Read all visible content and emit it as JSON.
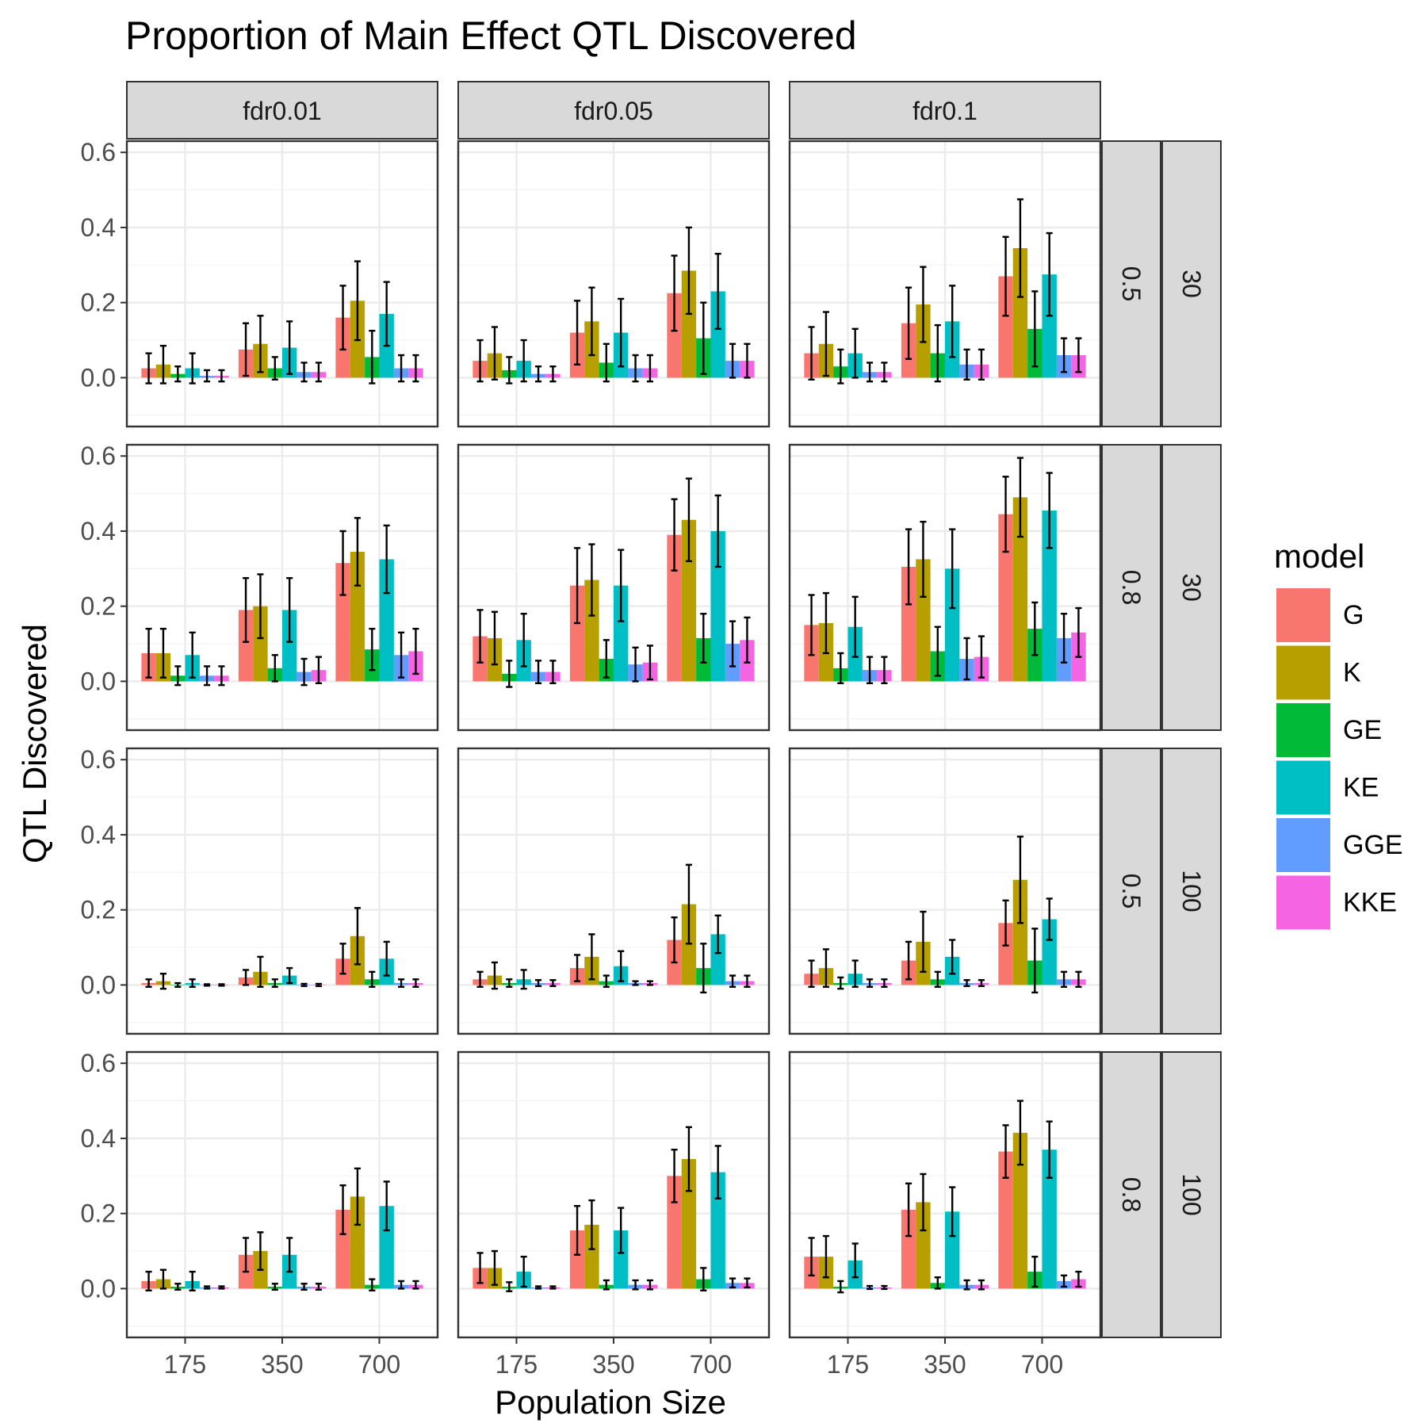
{
  "chart_data": {
    "type": "bar",
    "title": "Proportion of Main Effect QTL Discovered",
    "xlabel": "Population Size",
    "ylabel": "QTL Discovered",
    "categories": [
      "175",
      "350",
      "700"
    ],
    "ylim": [
      -0.13,
      0.63
    ],
    "yticks": [
      "0.0",
      "0.2",
      "0.4",
      "0.6"
    ],
    "grid": true,
    "legend": {
      "title": "model",
      "position": "right"
    },
    "models": [
      "G",
      "K",
      "GE",
      "KE",
      "GGE",
      "KKE"
    ],
    "colors": {
      "G": "#F8766D",
      "K": "#B79F00",
      "GE": "#00BA38",
      "KE": "#00BFC4",
      "GGE": "#619CFF",
      "KKE": "#F564E3"
    },
    "col_labels": [
      "fdr0.01",
      "fdr0.05",
      "fdr0.1"
    ],
    "row_labels": [
      [
        "0.5",
        "30"
      ],
      [
        "0.8",
        "30"
      ],
      [
        "0.5",
        "100"
      ],
      [
        "0.8",
        "100"
      ]
    ],
    "panels": [
      {
        "row": 0,
        "col": 0,
        "series": [
          {
            "name": "G",
            "values": [
              0.025,
              0.075,
              0.16
            ],
            "err": [
              0.04,
              0.07,
              0.085
            ]
          },
          {
            "name": "K",
            "values": [
              0.035,
              0.09,
              0.205
            ],
            "err": [
              0.05,
              0.075,
              0.105
            ]
          },
          {
            "name": "GE",
            "values": [
              0.01,
              0.025,
              0.055
            ],
            "err": [
              0.02,
              0.03,
              0.07
            ]
          },
          {
            "name": "KE",
            "values": [
              0.025,
              0.08,
              0.17
            ],
            "err": [
              0.04,
              0.07,
              0.085
            ]
          },
          {
            "name": "GGE",
            "values": [
              0.005,
              0.015,
              0.025
            ],
            "err": [
              0.015,
              0.025,
              0.035
            ]
          },
          {
            "name": "KKE",
            "values": [
              0.005,
              0.015,
              0.025
            ],
            "err": [
              0.015,
              0.025,
              0.035
            ]
          }
        ]
      },
      {
        "row": 0,
        "col": 1,
        "series": [
          {
            "name": "G",
            "values": [
              0.045,
              0.12,
              0.225
            ],
            "err": [
              0.055,
              0.085,
              0.1
            ]
          },
          {
            "name": "K",
            "values": [
              0.065,
              0.15,
              0.285
            ],
            "err": [
              0.07,
              0.09,
              0.115
            ]
          },
          {
            "name": "GE",
            "values": [
              0.02,
              0.04,
              0.105
            ],
            "err": [
              0.035,
              0.05,
              0.095
            ]
          },
          {
            "name": "KE",
            "values": [
              0.045,
              0.12,
              0.23
            ],
            "err": [
              0.055,
              0.09,
              0.1
            ]
          },
          {
            "name": "GGE",
            "values": [
              0.01,
              0.025,
              0.045
            ],
            "err": [
              0.02,
              0.035,
              0.045
            ]
          },
          {
            "name": "KKE",
            "values": [
              0.01,
              0.025,
              0.045
            ],
            "err": [
              0.02,
              0.035,
              0.045
            ]
          }
        ]
      },
      {
        "row": 0,
        "col": 2,
        "series": [
          {
            "name": "G",
            "values": [
              0.065,
              0.145,
              0.27
            ],
            "err": [
              0.07,
              0.095,
              0.105
            ]
          },
          {
            "name": "K",
            "values": [
              0.09,
              0.195,
              0.345
            ],
            "err": [
              0.085,
              0.1,
              0.13
            ]
          },
          {
            "name": "GE",
            "values": [
              0.03,
              0.065,
              0.13
            ],
            "err": [
              0.045,
              0.075,
              0.1
            ]
          },
          {
            "name": "KE",
            "values": [
              0.065,
              0.15,
              0.275
            ],
            "err": [
              0.065,
              0.095,
              0.11
            ]
          },
          {
            "name": "GGE",
            "values": [
              0.015,
              0.035,
              0.06
            ],
            "err": [
              0.025,
              0.04,
              0.045
            ]
          },
          {
            "name": "KKE",
            "values": [
              0.015,
              0.035,
              0.06
            ],
            "err": [
              0.025,
              0.04,
              0.045
            ]
          }
        ]
      },
      {
        "row": 1,
        "col": 0,
        "series": [
          {
            "name": "G",
            "values": [
              0.075,
              0.19,
              0.315
            ],
            "err": [
              0.065,
              0.085,
              0.085
            ]
          },
          {
            "name": "K",
            "values": [
              0.075,
              0.2,
              0.345
            ],
            "err": [
              0.065,
              0.085,
              0.09
            ]
          },
          {
            "name": "GE",
            "values": [
              0.015,
              0.035,
              0.085
            ],
            "err": [
              0.025,
              0.035,
              0.055
            ]
          },
          {
            "name": "KE",
            "values": [
              0.07,
              0.19,
              0.325
            ],
            "err": [
              0.06,
              0.085,
              0.09
            ]
          },
          {
            "name": "GGE",
            "values": [
              0.015,
              0.025,
              0.07
            ],
            "err": [
              0.025,
              0.035,
              0.06
            ]
          },
          {
            "name": "KKE",
            "values": [
              0.015,
              0.03,
              0.08
            ],
            "err": [
              0.025,
              0.035,
              0.06
            ]
          }
        ]
      },
      {
        "row": 1,
        "col": 1,
        "series": [
          {
            "name": "G",
            "values": [
              0.12,
              0.255,
              0.39
            ],
            "err": [
              0.07,
              0.1,
              0.095
            ]
          },
          {
            "name": "K",
            "values": [
              0.115,
              0.27,
              0.43
            ],
            "err": [
              0.07,
              0.095,
              0.11
            ]
          },
          {
            "name": "GE",
            "values": [
              0.02,
              0.06,
              0.115
            ],
            "err": [
              0.035,
              0.05,
              0.065
            ]
          },
          {
            "name": "KE",
            "values": [
              0.11,
              0.255,
              0.4
            ],
            "err": [
              0.07,
              0.095,
              0.095
            ]
          },
          {
            "name": "GGE",
            "values": [
              0.025,
              0.045,
              0.1
            ],
            "err": [
              0.03,
              0.045,
              0.06
            ]
          },
          {
            "name": "KKE",
            "values": [
              0.025,
              0.05,
              0.11
            ],
            "err": [
              0.03,
              0.045,
              0.06
            ]
          }
        ]
      },
      {
        "row": 1,
        "col": 2,
        "series": [
          {
            "name": "G",
            "values": [
              0.15,
              0.305,
              0.445
            ],
            "err": [
              0.08,
              0.1,
              0.1
            ]
          },
          {
            "name": "K",
            "values": [
              0.155,
              0.325,
              0.49
            ],
            "err": [
              0.08,
              0.1,
              0.105
            ]
          },
          {
            "name": "GE",
            "values": [
              0.035,
              0.08,
              0.14
            ],
            "err": [
              0.04,
              0.065,
              0.07
            ]
          },
          {
            "name": "KE",
            "values": [
              0.145,
              0.3,
              0.455
            ],
            "err": [
              0.08,
              0.105,
              0.1
            ]
          },
          {
            "name": "GGE",
            "values": [
              0.03,
              0.06,
              0.115
            ],
            "err": [
              0.035,
              0.055,
              0.065
            ]
          },
          {
            "name": "KKE",
            "values": [
              0.03,
              0.065,
              0.13
            ],
            "err": [
              0.035,
              0.055,
              0.065
            ]
          }
        ]
      },
      {
        "row": 2,
        "col": 0,
        "series": [
          {
            "name": "G",
            "values": [
              0.005,
              0.02,
              0.07
            ],
            "err": [
              0.01,
              0.02,
              0.04
            ]
          },
          {
            "name": "K",
            "values": [
              0.01,
              0.035,
              0.13
            ],
            "err": [
              0.02,
              0.04,
              0.075
            ]
          },
          {
            "name": "GE",
            "values": [
              0.0,
              0.005,
              0.015
            ],
            "err": [
              0.005,
              0.01,
              0.02
            ]
          },
          {
            "name": "KE",
            "values": [
              0.005,
              0.025,
              0.07
            ],
            "err": [
              0.01,
              0.02,
              0.045
            ]
          },
          {
            "name": "GGE",
            "values": [
              0.0,
              0.0,
              0.005
            ],
            "err": [
              0.002,
              0.003,
              0.01
            ]
          },
          {
            "name": "KKE",
            "values": [
              0.0,
              0.0,
              0.005
            ],
            "err": [
              0.002,
              0.003,
              0.01
            ]
          }
        ]
      },
      {
        "row": 2,
        "col": 1,
        "series": [
          {
            "name": "G",
            "values": [
              0.015,
              0.045,
              0.12
            ],
            "err": [
              0.02,
              0.035,
              0.06
            ]
          },
          {
            "name": "K",
            "values": [
              0.025,
              0.075,
              0.215
            ],
            "err": [
              0.035,
              0.06,
              0.105
            ]
          },
          {
            "name": "GE",
            "values": [
              0.005,
              0.01,
              0.045
            ],
            "err": [
              0.01,
              0.015,
              0.065
            ]
          },
          {
            "name": "KE",
            "values": [
              0.015,
              0.05,
              0.135
            ],
            "err": [
              0.025,
              0.04,
              0.05
            ]
          },
          {
            "name": "GGE",
            "values": [
              0.005,
              0.005,
              0.01
            ],
            "err": [
              0.008,
              0.005,
              0.015
            ]
          },
          {
            "name": "KKE",
            "values": [
              0.005,
              0.005,
              0.01
            ],
            "err": [
              0.008,
              0.005,
              0.015
            ]
          }
        ]
      },
      {
        "row": 2,
        "col": 2,
        "series": [
          {
            "name": "G",
            "values": [
              0.03,
              0.065,
              0.165
            ],
            "err": [
              0.035,
              0.05,
              0.06
            ]
          },
          {
            "name": "K",
            "values": [
              0.045,
              0.115,
              0.28
            ],
            "err": [
              0.05,
              0.08,
              0.115
            ]
          },
          {
            "name": "GE",
            "values": [
              0.005,
              0.015,
              0.065
            ],
            "err": [
              0.015,
              0.02,
              0.085
            ]
          },
          {
            "name": "KE",
            "values": [
              0.03,
              0.075,
              0.175
            ],
            "err": [
              0.035,
              0.045,
              0.055
            ]
          },
          {
            "name": "GGE",
            "values": [
              0.005,
              0.005,
              0.015
            ],
            "err": [
              0.01,
              0.008,
              0.02
            ]
          },
          {
            "name": "KKE",
            "values": [
              0.005,
              0.005,
              0.015
            ],
            "err": [
              0.01,
              0.008,
              0.02
            ]
          }
        ]
      },
      {
        "row": 3,
        "col": 0,
        "series": [
          {
            "name": "G",
            "values": [
              0.02,
              0.09,
              0.21
            ],
            "err": [
              0.025,
              0.045,
              0.065
            ]
          },
          {
            "name": "K",
            "values": [
              0.025,
              0.1,
              0.245
            ],
            "err": [
              0.025,
              0.05,
              0.075
            ]
          },
          {
            "name": "GE",
            "values": [
              0.005,
              0.005,
              0.01
            ],
            "err": [
              0.008,
              0.008,
              0.015
            ]
          },
          {
            "name": "KE",
            "values": [
              0.02,
              0.09,
              0.22
            ],
            "err": [
              0.025,
              0.045,
              0.065
            ]
          },
          {
            "name": "GGE",
            "values": [
              0.003,
              0.005,
              0.01
            ],
            "err": [
              0.003,
              0.008,
              0.01
            ]
          },
          {
            "name": "KKE",
            "values": [
              0.003,
              0.005,
              0.01
            ],
            "err": [
              0.003,
              0.008,
              0.01
            ]
          }
        ]
      },
      {
        "row": 3,
        "col": 1,
        "series": [
          {
            "name": "G",
            "values": [
              0.055,
              0.155,
              0.3
            ],
            "err": [
              0.04,
              0.065,
              0.07
            ]
          },
          {
            "name": "K",
            "values": [
              0.055,
              0.17,
              0.345
            ],
            "err": [
              0.045,
              0.065,
              0.085
            ]
          },
          {
            "name": "GE",
            "values": [
              0.005,
              0.01,
              0.025
            ],
            "err": [
              0.012,
              0.012,
              0.03
            ]
          },
          {
            "name": "KE",
            "values": [
              0.045,
              0.155,
              0.31
            ],
            "err": [
              0.04,
              0.06,
              0.07
            ]
          },
          {
            "name": "GGE",
            "values": [
              0.003,
              0.01,
              0.015
            ],
            "err": [
              0.003,
              0.012,
              0.012
            ]
          },
          {
            "name": "KKE",
            "values": [
              0.003,
              0.01,
              0.015
            ],
            "err": [
              0.003,
              0.012,
              0.012
            ]
          }
        ]
      },
      {
        "row": 3,
        "col": 2,
        "series": [
          {
            "name": "G",
            "values": [
              0.085,
              0.21,
              0.365
            ],
            "err": [
              0.05,
              0.07,
              0.07
            ]
          },
          {
            "name": "K",
            "values": [
              0.085,
              0.23,
              0.415
            ],
            "err": [
              0.055,
              0.075,
              0.085
            ]
          },
          {
            "name": "GE",
            "values": [
              0.005,
              0.015,
              0.045
            ],
            "err": [
              0.015,
              0.015,
              0.04
            ]
          },
          {
            "name": "KE",
            "values": [
              0.075,
              0.205,
              0.37
            ],
            "err": [
              0.045,
              0.065,
              0.075
            ]
          },
          {
            "name": "GGE",
            "values": [
              0.003,
              0.01,
              0.02
            ],
            "err": [
              0.004,
              0.012,
              0.015
            ]
          },
          {
            "name": "KKE",
            "values": [
              0.003,
              0.01,
              0.025
            ],
            "err": [
              0.004,
              0.012,
              0.02
            ]
          }
        ]
      }
    ]
  }
}
